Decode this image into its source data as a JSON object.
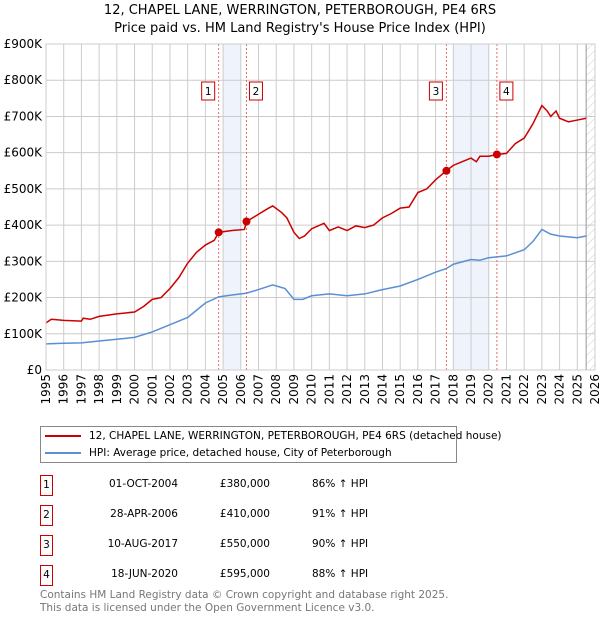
{
  "chart_data": {
    "type": "line",
    "title": "12, CHAPEL LANE, WERRINGTON, PETERBOROUGH, PE4 6RS",
    "subtitle": "Price paid vs. HM Land Registry's House Price Index (HPI)",
    "xlim": [
      1995,
      2026
    ],
    "ylim": [
      0,
      900000
    ],
    "y_ticks": [
      {
        "v": 0,
        "label": "£0"
      },
      {
        "v": 100000,
        "label": "£100K"
      },
      {
        "v": 200000,
        "label": "£200K"
      },
      {
        "v": 300000,
        "label": "£300K"
      },
      {
        "v": 400000,
        "label": "£400K"
      },
      {
        "v": 500000,
        "label": "£500K"
      },
      {
        "v": 600000,
        "label": "£600K"
      },
      {
        "v": 700000,
        "label": "£700K"
      },
      {
        "v": 800000,
        "label": "£800K"
      },
      {
        "v": 900000,
        "label": "£900K"
      }
    ],
    "x_ticks": [
      "1995",
      "1996",
      "1997",
      "1998",
      "1999",
      "2000",
      "2001",
      "2002",
      "2003",
      "2004",
      "2005",
      "2006",
      "2007",
      "2008",
      "2009",
      "2010",
      "2011",
      "2012",
      "2013",
      "2014",
      "2015",
      "2016",
      "2017",
      "2018",
      "2019",
      "2020",
      "2021",
      "2022",
      "2023",
      "2024",
      "2025",
      "2026"
    ],
    "grid": true,
    "shaded_ranges": [
      [
        2005,
        2006
      ],
      [
        2018,
        2020
      ]
    ],
    "forecast_hatch_from": 2025.5,
    "series": [
      {
        "name": "12, CHAPEL LANE, WERRINGTON, PETERBOROUGH, PE4 6RS (detached house)",
        "color": "#cc0000",
        "x": [
          1995,
          1995.3,
          1996,
          1997,
          1997.1,
          1997.5,
          1998,
          1999,
          2000,
          2000.5,
          2001,
          2001.5,
          2002,
          2002.5,
          2003,
          2003.5,
          2004,
          2004.5,
          2004.75,
          2005.5,
          2006.2,
          2006.33,
          2007,
          2007.5,
          2007.8,
          2008.3,
          2008.6,
          2009,
          2009.3,
          2009.6,
          2010,
          2010.7,
          2011,
          2011.5,
          2012,
          2012.5,
          2013,
          2013.5,
          2014,
          2014.5,
          2015,
          2015.5,
          2016,
          2016.5,
          2017,
          2017.6,
          2018,
          2018.5,
          2019,
          2019.3,
          2019.5,
          2020,
          2020.46,
          2021,
          2021.5,
          2022,
          2022.5,
          2023,
          2023.3,
          2023.5,
          2023.8,
          2024,
          2024.5,
          2025,
          2025.5
        ],
        "y": [
          130000,
          140000,
          137000,
          135000,
          143000,
          140000,
          148000,
          155000,
          160000,
          175000,
          195000,
          200000,
          225000,
          255000,
          295000,
          325000,
          345000,
          358000,
          380000,
          385000,
          388000,
          410000,
          430000,
          445000,
          453000,
          435000,
          420000,
          380000,
          363000,
          370000,
          390000,
          405000,
          385000,
          395000,
          385000,
          398000,
          393000,
          400000,
          420000,
          432000,
          447000,
          450000,
          490000,
          500000,
          525000,
          550000,
          565000,
          575000,
          585000,
          575000,
          590000,
          590000,
          595000,
          598000,
          625000,
          640000,
          680000,
          730000,
          715000,
          700000,
          715000,
          695000,
          685000,
          690000,
          695000
        ]
      },
      {
        "name": "HPI: Average price, detached house, City of Peterborough",
        "color": "#5b8fd4",
        "x": [
          1995,
          1996,
          1997,
          1998,
          1999,
          2000,
          2001,
          2002,
          2003,
          2003.5,
          2004,
          2004.75,
          2005.5,
          2006.3,
          2007,
          2007.8,
          2008.5,
          2009,
          2009.5,
          2010,
          2011,
          2012,
          2013,
          2014,
          2015,
          2016,
          2017,
          2017.6,
          2018,
          2019,
          2019.5,
          2020,
          2021,
          2022,
          2022.5,
          2023,
          2023.5,
          2024,
          2025,
          2025.5
        ],
        "y": [
          72000,
          74000,
          75000,
          80000,
          85000,
          90000,
          105000,
          125000,
          145000,
          165000,
          185000,
          202000,
          207000,
          212000,
          222000,
          235000,
          225000,
          195000,
          195000,
          205000,
          210000,
          205000,
          210000,
          222000,
          232000,
          250000,
          270000,
          280000,
          292000,
          305000,
          303000,
          310000,
          315000,
          332000,
          355000,
          388000,
          375000,
          370000,
          365000,
          370000
        ]
      }
    ],
    "sales": [
      {
        "n": "1",
        "x": 2004.75,
        "price": 380000,
        "date": "01-OCT-2004",
        "price_label": "£380,000",
        "hpi": "86% ↑ HPI"
      },
      {
        "n": "2",
        "x": 2006.32,
        "price": 410000,
        "date": "28-APR-2006",
        "price_label": "£410,000",
        "hpi": "91% ↑ HPI"
      },
      {
        "n": "3",
        "x": 2017.61,
        "price": 550000,
        "date": "10-AUG-2017",
        "price_label": "£550,000",
        "hpi": "90% ↑ HPI"
      },
      {
        "n": "4",
        "x": 2020.46,
        "price": 595000,
        "date": "18-JUN-2020",
        "price_label": "£595,000",
        "hpi": "88% ↑ HPI"
      }
    ]
  },
  "header": {
    "title": "12, CHAPEL LANE, WERRINGTON, PETERBOROUGH, PE4 6RS",
    "subtitle": "Price paid vs. HM Land Registry's House Price Index (HPI)"
  },
  "legend": {
    "property": "12, CHAPEL LANE, WERRINGTON, PETERBOROUGH, PE4 6RS (detached house)",
    "hpi": "HPI: Average price, detached house, City of Peterborough"
  },
  "footer": {
    "line1": "Contains HM Land Registry data © Crown copyright and database right 2025.",
    "line2": "This data is licensed under the Open Government Licence v3.0."
  }
}
